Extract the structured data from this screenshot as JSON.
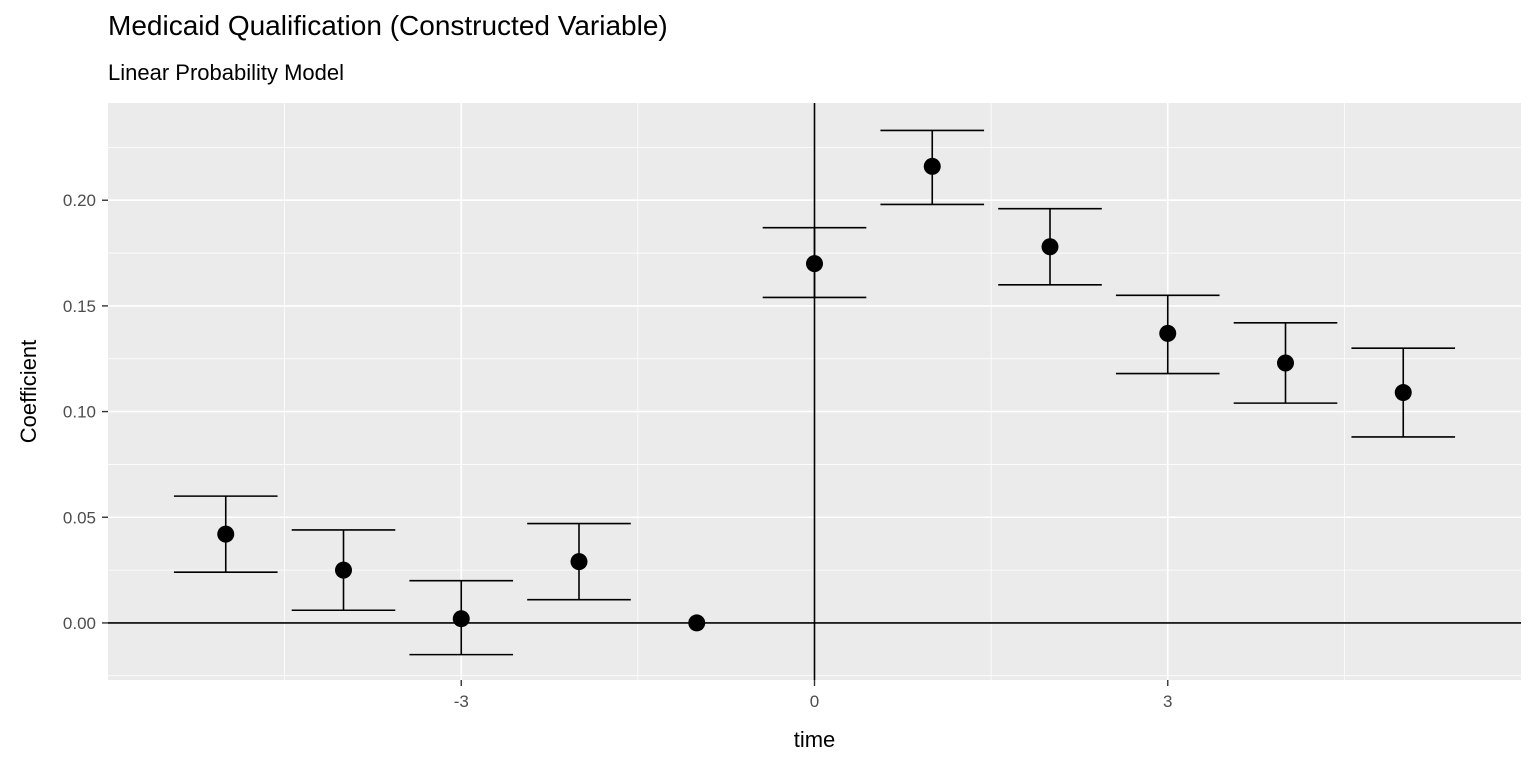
{
  "chart_data": {
    "type": "scatter",
    "title": "Medicaid Qualification (Constructed Variable)",
    "subtitle": "Linear Probability Model",
    "xlabel": "time",
    "ylabel": "Coefficient",
    "xlim": [
      -6,
      6
    ],
    "ylim": [
      -0.027,
      0.246
    ],
    "x_ticks": [
      -3,
      0,
      3
    ],
    "x_tick_labels": [
      "-3",
      "0",
      "3"
    ],
    "y_ticks": [
      0.0,
      0.05,
      0.1,
      0.15,
      0.2
    ],
    "y_tick_labels": [
      "0.00",
      "0.05",
      "0.10",
      "0.15",
      "0.20"
    ],
    "grid": true,
    "panel_background": "#ebebeb",
    "hline_y": 0,
    "vline_x": 0,
    "points": [
      {
        "x": -5,
        "y": 0.042,
        "lower": 0.024,
        "upper": 0.06
      },
      {
        "x": -4,
        "y": 0.025,
        "lower": 0.006,
        "upper": 0.044
      },
      {
        "x": -3,
        "y": 0.002,
        "lower": -0.015,
        "upper": 0.02
      },
      {
        "x": -2,
        "y": 0.029,
        "lower": 0.011,
        "upper": 0.047
      },
      {
        "x": -1,
        "y": 0.0,
        "lower": 0.0,
        "upper": 0.0
      },
      {
        "x": 0,
        "y": 0.17,
        "lower": 0.154,
        "upper": 0.187
      },
      {
        "x": 1,
        "y": 0.216,
        "lower": 0.198,
        "upper": 0.233
      },
      {
        "x": 2,
        "y": 0.178,
        "lower": 0.16,
        "upper": 0.196
      },
      {
        "x": 3,
        "y": 0.137,
        "lower": 0.118,
        "upper": 0.155
      },
      {
        "x": 4,
        "y": 0.123,
        "lower": 0.104,
        "upper": 0.142
      },
      {
        "x": 5,
        "y": 0.109,
        "lower": 0.088,
        "upper": 0.13
      }
    ]
  }
}
